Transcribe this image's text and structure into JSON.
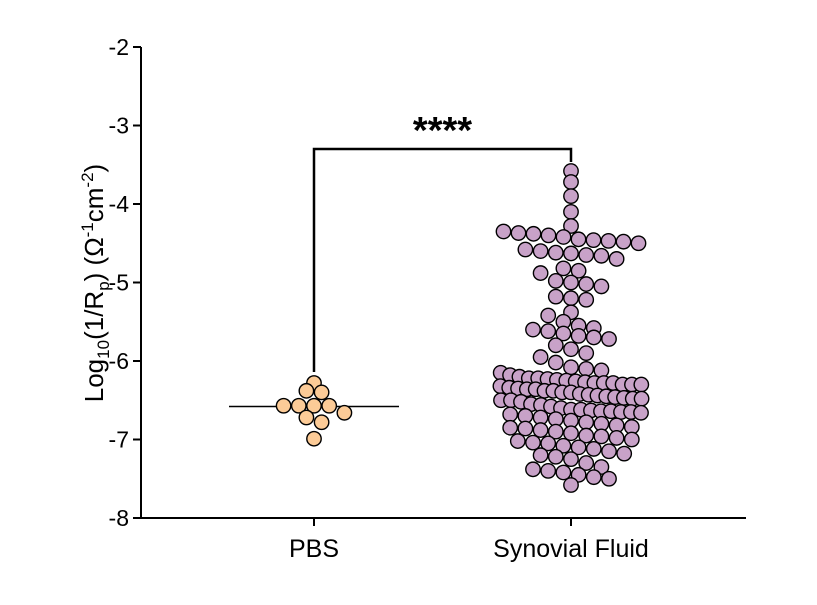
{
  "chart_data": {
    "type": "scatter",
    "subtype": "dot-plot",
    "title": "",
    "xlabel": "",
    "ylabel": {
      "prefix": "Log",
      "prefix_sub": "10",
      "body1": "(1/R",
      "body_sub": "p",
      "body2": ") (Ω",
      "sup1": "-1",
      "body3": "cm",
      "sup2": "-2",
      "body4": ")"
    },
    "ylim": [
      -8,
      -2
    ],
    "yticks": [
      "-2",
      "-3",
      "-4",
      "-5",
      "-6",
      "-7",
      "-8"
    ],
    "categories": [
      "PBS",
      "Synovial Fluid"
    ],
    "grid": false,
    "legend": "none",
    "series": [
      {
        "category": "PBS",
        "color": "#FCCB97",
        "median": -6.58,
        "values": [
          -6.38,
          -6.28,
          -6.4,
          -6.57,
          -6.57,
          -6.57,
          -6.57,
          -6.66,
          -6.72,
          -6.78,
          -6.99
        ]
      },
      {
        "category": "Synovial Fluid",
        "color": "#C8A2C8",
        "median": -6.3,
        "values": [
          -3.58,
          -3.72,
          -3.9,
          -4.1,
          -4.28,
          -4.35,
          -4.37,
          -4.38,
          -4.4,
          -4.42,
          -4.45,
          -4.46,
          -4.47,
          -4.48,
          -4.5,
          -4.58,
          -4.6,
          -4.62,
          -4.63,
          -4.65,
          -4.66,
          -4.7,
          -4.82,
          -4.85,
          -4.88,
          -4.98,
          -5.0,
          -5.02,
          -5.05,
          -5.18,
          -5.2,
          -5.22,
          -5.38,
          -5.42,
          -5.5,
          -5.55,
          -5.58,
          -5.6,
          -5.62,
          -5.65,
          -5.68,
          -5.7,
          -5.72,
          -5.8,
          -5.85,
          -5.9,
          -5.95,
          -6.02,
          -6.08,
          -6.1,
          -6.12,
          -6.15,
          -6.18,
          -6.2,
          -6.22,
          -6.22,
          -6.23,
          -6.24,
          -6.25,
          -6.26,
          -6.27,
          -6.28,
          -6.28,
          -6.28,
          -6.3,
          -6.3,
          -6.3,
          -6.32,
          -6.34,
          -6.35,
          -6.36,
          -6.36,
          -6.38,
          -6.38,
          -6.4,
          -6.4,
          -6.42,
          -6.43,
          -6.44,
          -6.45,
          -6.46,
          -6.47,
          -6.48,
          -6.48,
          -6.5,
          -6.5,
          -6.52,
          -6.55,
          -6.56,
          -6.58,
          -6.6,
          -6.62,
          -6.62,
          -6.63,
          -6.64,
          -6.64,
          -6.65,
          -6.65,
          -6.66,
          -6.68,
          -6.7,
          -6.72,
          -6.74,
          -6.76,
          -6.78,
          -6.8,
          -6.82,
          -6.84,
          -6.85,
          -6.86,
          -6.88,
          -6.9,
          -6.92,
          -6.95,
          -6.96,
          -6.98,
          -7.0,
          -7.02,
          -7.04,
          -7.05,
          -7.08,
          -7.1,
          -7.12,
          -7.15,
          -7.18,
          -7.2,
          -7.22,
          -7.25,
          -7.3,
          -7.35,
          -7.38,
          -7.4,
          -7.42,
          -7.45,
          -7.48,
          -7.5,
          -7.58
        ]
      }
    ],
    "significance": {
      "label": "****",
      "y": -3.3,
      "between": [
        "PBS",
        "Synovial Fluid"
      ]
    }
  }
}
